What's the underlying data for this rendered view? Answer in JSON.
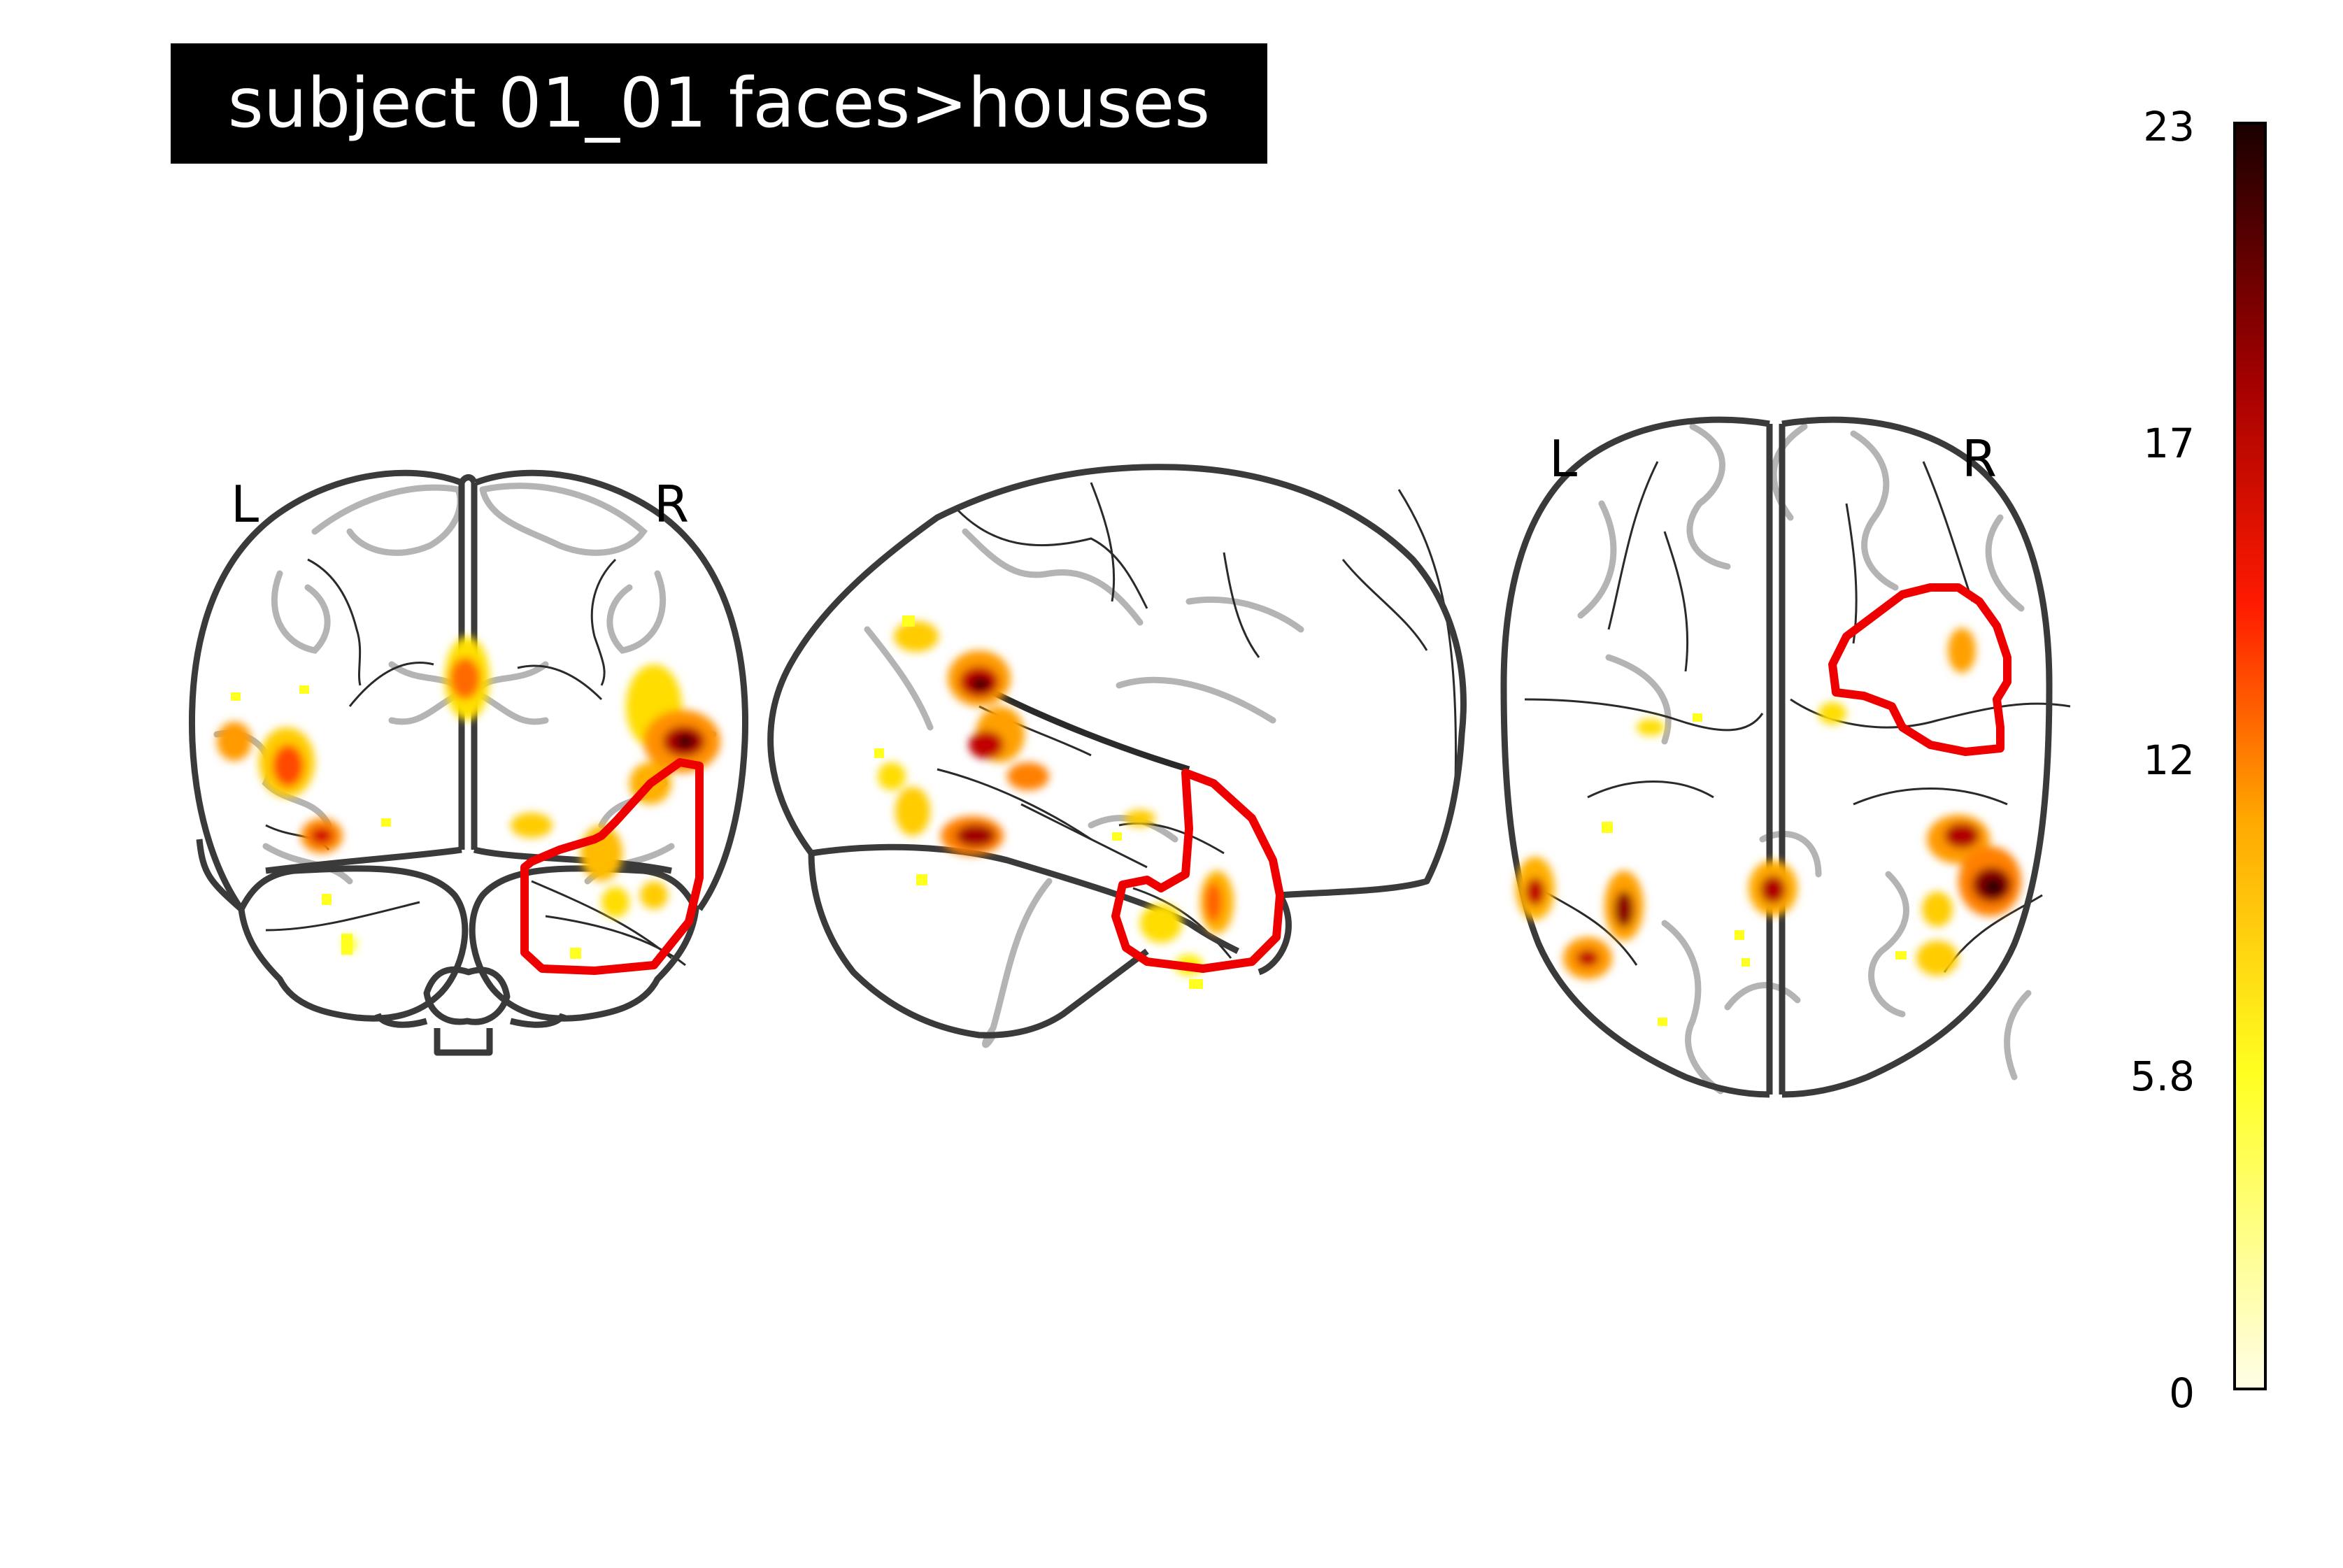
{
  "figure": {
    "title": "subject 01_01 faces>houses",
    "orientation": {
      "coronal": {
        "left": "L",
        "right": "R"
      },
      "axial": {
        "left": "L",
        "right": "R"
      }
    },
    "colormap": "hot_r",
    "colorbar": {
      "min": 0,
      "max": 23,
      "ticks": [
        "23",
        "17",
        "12",
        "5.8",
        "0"
      ],
      "tick_values": [
        23,
        17.25,
        11.5,
        5.75,
        0
      ],
      "colors": [
        "#fffde8",
        "#ffff20",
        "#ffa800",
        "#ff1a00",
        "#a10000",
        "#1a0000"
      ]
    },
    "colors": {
      "outline": "#3a3a3a",
      "gyri": "#b4b4b4",
      "roi_contour": "#ee0000",
      "title_bg": "#000000",
      "title_fg": "#ffffff"
    }
  }
}
